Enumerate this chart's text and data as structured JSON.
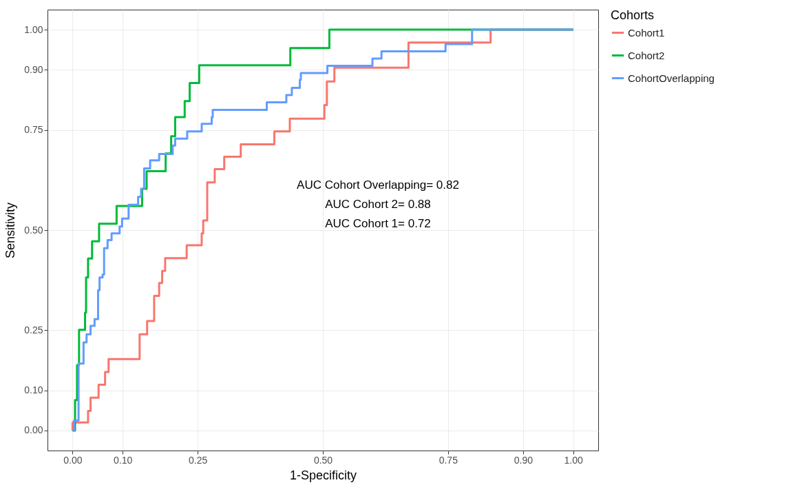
{
  "chart_data": {
    "type": "step",
    "xlabel": "1-Specificity",
    "ylabel": "Sensitivity",
    "legend_title": "Cohorts",
    "legend": "right",
    "grid": true,
    "xlim": [
      -0.05,
      1.05
    ],
    "ylim": [
      -0.05,
      1.05
    ],
    "xticks": [
      {
        "value": 0,
        "label": "0.00"
      },
      {
        "value": 0.1,
        "label": "0.10"
      },
      {
        "value": 0.25,
        "label": "0.25"
      },
      {
        "value": 0.5,
        "label": "0.50"
      },
      {
        "value": 0.75,
        "label": "0.75"
      },
      {
        "value": 0.9,
        "label": "0.90"
      },
      {
        "value": 1,
        "label": "1.00"
      }
    ],
    "yticks": [
      {
        "value": 0,
        "label": "0.00"
      },
      {
        "value": 0.1,
        "label": "0.10"
      },
      {
        "value": 0.25,
        "label": "0.25"
      },
      {
        "value": 0.5,
        "label": "0.50"
      },
      {
        "value": 0.75,
        "label": "0.75"
      },
      {
        "value": 0.9,
        "label": "0.90"
      },
      {
        "value": 1,
        "label": "1.00"
      }
    ],
    "annotations": [
      "AUC Cohort Overlapping= 0.82",
      "AUC Cohort 2= 0.88",
      "AUC Cohort 1= 0.72"
    ],
    "series": [
      {
        "name": "Cohort1",
        "color": "#f8766d",
        "x": [
          0,
          0,
          0.031,
          0.036,
          0.052,
          0.065,
          0.072,
          0.134,
          0.149,
          0.163,
          0.173,
          0.179,
          0.185,
          0.228,
          0.258,
          0.261,
          0.269,
          0.284,
          0.303,
          0.336,
          0.403,
          0.434,
          0.503,
          0.508,
          0.523,
          0.671,
          0.835,
          1
        ],
        "values": [
          0,
          0.02,
          0.049,
          0.082,
          0.114,
          0.146,
          0.178,
          0.24,
          0.273,
          0.336,
          0.368,
          0.398,
          0.43,
          0.462,
          0.492,
          0.524,
          0.619,
          0.652,
          0.683,
          0.714,
          0.746,
          0.778,
          0.812,
          0.871,
          0.905,
          0.968,
          1,
          1
        ]
      },
      {
        "name": "Cohort2",
        "color": "#00ba38",
        "x": [
          0,
          0.005,
          0.009,
          0.013,
          0.025,
          0.027,
          0.031,
          0.039,
          0.053,
          0.088,
          0.139,
          0.148,
          0.186,
          0.197,
          0.205,
          0.224,
          0.234,
          0.253,
          0.435,
          0.513,
          1
        ],
        "values": [
          0,
          0.076,
          0.163,
          0.251,
          0.294,
          0.382,
          0.429,
          0.472,
          0.516,
          0.56,
          0.603,
          0.647,
          0.691,
          0.734,
          0.782,
          0.822,
          0.867,
          0.911,
          0.954,
          1,
          1
        ]
      },
      {
        "name": "CohortOverlapping",
        "color": "#619cff",
        "x": [
          0,
          0.003,
          0.012,
          0.022,
          0.028,
          0.036,
          0.044,
          0.051,
          0.054,
          0.06,
          0.063,
          0.07,
          0.078,
          0.094,
          0.099,
          0.112,
          0.131,
          0.137,
          0.143,
          0.155,
          0.173,
          0.2,
          0.205,
          0.229,
          0.258,
          0.278,
          0.28,
          0.388,
          0.427,
          0.438,
          0.454,
          0.456,
          0.509,
          0.599,
          0.617,
          0.745,
          0.798,
          1
        ],
        "values": [
          0,
          0.025,
          0.167,
          0.22,
          0.24,
          0.261,
          0.278,
          0.35,
          0.382,
          0.389,
          0.455,
          0.475,
          0.492,
          0.509,
          0.529,
          0.563,
          0.583,
          0.603,
          0.654,
          0.674,
          0.69,
          0.711,
          0.728,
          0.746,
          0.765,
          0.782,
          0.8,
          0.819,
          0.837,
          0.855,
          0.875,
          0.892,
          0.91,
          0.928,
          0.946,
          0.964,
          1,
          1
        ]
      }
    ]
  }
}
